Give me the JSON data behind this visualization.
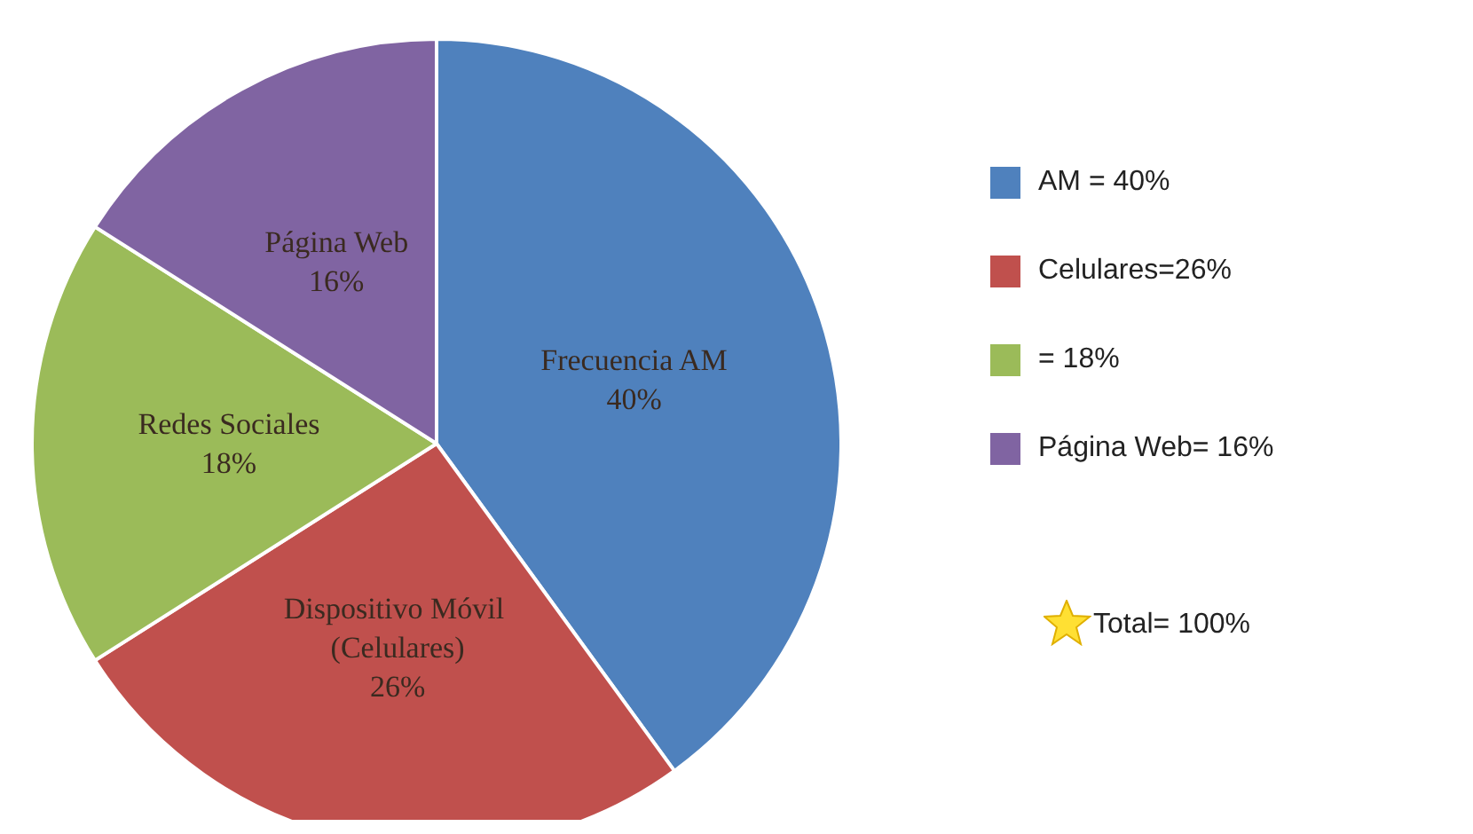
{
  "chart_data": {
    "type": "pie",
    "categories": [
      "Frecuencia AM",
      "Dispositivo Móvil (Celulares)",
      "Redes Sociales",
      "Página Web"
    ],
    "values": [
      40,
      26,
      18,
      16
    ],
    "colors": [
      "#4f81bd",
      "#c0504d",
      "#9bbb59",
      "#8064a2"
    ],
    "value_labels": [
      "40%",
      "26%",
      "18%",
      "16%"
    ],
    "annotations": [
      "AM = 40%",
      "Celulares=26%",
      "= 18%",
      "Página Web= 16%",
      "Total= 100%"
    ]
  }
}
